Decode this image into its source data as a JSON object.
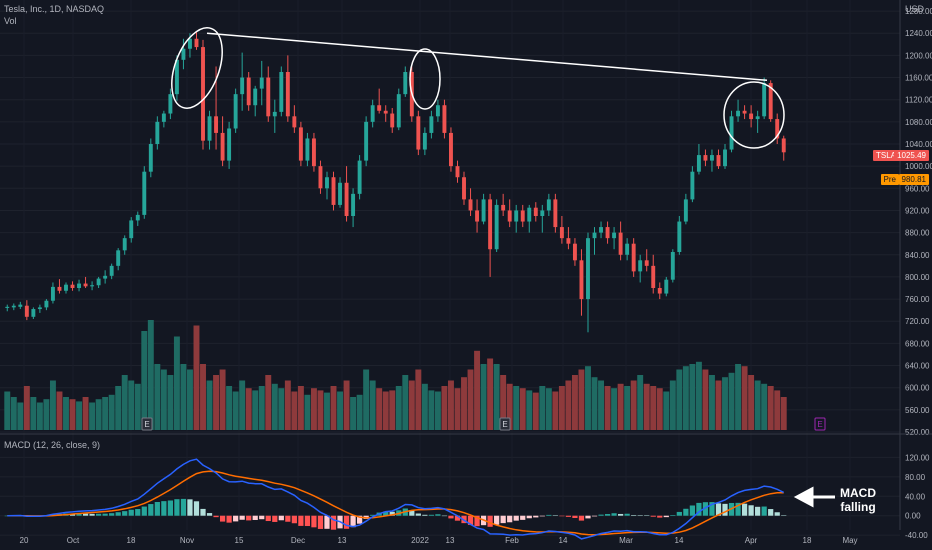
{
  "header": {
    "symbol_line": "Tesla, Inc., 1D, NASDAQ",
    "volume_label": "Vol",
    "currency": "USD",
    "macd_label": "MACD (12, 26, close, 9)"
  },
  "price_tags": {
    "symbol": "TSLA",
    "last": "1025.49",
    "pre_label": "Pre",
    "pre_value": "980.81"
  },
  "annotation": {
    "line1": "MACD",
    "line2": "falling"
  },
  "earnings_marker": "E",
  "colors": {
    "background": "#131722",
    "up": "#26a69a",
    "down": "#ef5350",
    "macd_line": "#2962ff",
    "signal_line": "#ff6d00",
    "hist_up_strong": "#26a69a",
    "hist_up_weak": "#b2dfdb",
    "hist_down_strong": "#ff5252",
    "hist_down_weak": "#ffcdd2",
    "pre_tag": "#ff9800",
    "earnings": "#9c27b0"
  },
  "chart_data": {
    "type": "candlestick",
    "price_axis_ticks": [
      "1280.00",
      "1240.00",
      "1200.00",
      "1160.00",
      "1120.00",
      "1080.00",
      "1040.00",
      "1000.00",
      "960.00",
      "920.00",
      "880.00",
      "840.00",
      "800.00",
      "760.00",
      "720.00",
      "680.00",
      "640.00",
      "600.00",
      "560.00",
      "520.00"
    ],
    "macd_axis_ticks": [
      "120.00",
      "80.00",
      "40.00",
      "0.00",
      "-40.00"
    ],
    "x_tick_labels": [
      "20",
      "Oct",
      "18",
      "Nov",
      "15",
      "Dec",
      "13",
      "2022",
      "13",
      "Feb",
      "14",
      "Mar",
      "14",
      "Apr",
      "18",
      "May"
    ],
    "price_range": [
      520,
      1300
    ],
    "macd_range": [
      -50,
      125
    ],
    "ohlc": [
      [
        744,
        750,
        738,
        746
      ],
      [
        745,
        752,
        740,
        748
      ],
      [
        746,
        755,
        742,
        750
      ],
      [
        748,
        758,
        722,
        728
      ],
      [
        728,
        745,
        724,
        742
      ],
      [
        742,
        750,
        735,
        745
      ],
      [
        745,
        760,
        740,
        757
      ],
      [
        757,
        790,
        752,
        782
      ],
      [
        782,
        796,
        770,
        775
      ],
      [
        775,
        790,
        770,
        786
      ],
      [
        786,
        792,
        775,
        780
      ],
      [
        780,
        795,
        774,
        788
      ],
      [
        788,
        800,
        780,
        783
      ],
      [
        783,
        792,
        776,
        785
      ],
      [
        785,
        800,
        780,
        797
      ],
      [
        797,
        812,
        788,
        802
      ],
      [
        802,
        824,
        796,
        820
      ],
      [
        820,
        852,
        812,
        848
      ],
      [
        848,
        875,
        840,
        870
      ],
      [
        870,
        908,
        862,
        902
      ],
      [
        902,
        918,
        892,
        912
      ],
      [
        912,
        1000,
        905,
        990
      ],
      [
        990,
        1050,
        980,
        1040
      ],
      [
        1040,
        1090,
        1030,
        1080
      ],
      [
        1080,
        1100,
        1070,
        1095
      ],
      [
        1095,
        1140,
        1085,
        1130
      ],
      [
        1130,
        1200,
        1118,
        1192
      ],
      [
        1192,
        1230,
        1175,
        1212
      ],
      [
        1212,
        1240,
        1196,
        1230
      ],
      [
        1230,
        1244,
        1210,
        1215
      ],
      [
        1215,
        1228,
        1030,
        1046
      ],
      [
        1046,
        1100,
        1030,
        1090
      ],
      [
        1090,
        1180,
        1030,
        1060
      ],
      [
        1060,
        1090,
        1000,
        1010
      ],
      [
        1010,
        1080,
        995,
        1068
      ],
      [
        1068,
        1140,
        1060,
        1130
      ],
      [
        1130,
        1205,
        1100,
        1160
      ],
      [
        1160,
        1170,
        1100,
        1110
      ],
      [
        1110,
        1145,
        1090,
        1140
      ],
      [
        1140,
        1190,
        1110,
        1160
      ],
      [
        1160,
        1180,
        1080,
        1090
      ],
      [
        1090,
        1120,
        1060,
        1098
      ],
      [
        1098,
        1180,
        1090,
        1170
      ],
      [
        1170,
        1200,
        1080,
        1090
      ],
      [
        1090,
        1110,
        1060,
        1070
      ],
      [
        1070,
        1080,
        1000,
        1010
      ],
      [
        1010,
        1060,
        1000,
        1050
      ],
      [
        1050,
        1060,
        990,
        1000
      ],
      [
        1000,
        1010,
        950,
        960
      ],
      [
        960,
        990,
        940,
        980
      ],
      [
        980,
        990,
        920,
        930
      ],
      [
        930,
        980,
        925,
        970
      ],
      [
        970,
        1000,
        900,
        910
      ],
      [
        910,
        960,
        890,
        950
      ],
      [
        950,
        1020,
        940,
        1010
      ],
      [
        1010,
        1090,
        1000,
        1080
      ],
      [
        1080,
        1120,
        1070,
        1110
      ],
      [
        1110,
        1140,
        1095,
        1100
      ],
      [
        1100,
        1110,
        1080,
        1095
      ],
      [
        1095,
        1105,
        1060,
        1070
      ],
      [
        1070,
        1140,
        1065,
        1130
      ],
      [
        1130,
        1180,
        1125,
        1170
      ],
      [
        1170,
        1180,
        1080,
        1090
      ],
      [
        1090,
        1100,
        1020,
        1030
      ],
      [
        1030,
        1070,
        1020,
        1060
      ],
      [
        1060,
        1100,
        1050,
        1090
      ],
      [
        1090,
        1120,
        1080,
        1110
      ],
      [
        1110,
        1120,
        1050,
        1060
      ],
      [
        1060,
        1070,
        990,
        1000
      ],
      [
        1000,
        1010,
        970,
        980
      ],
      [
        980,
        990,
        930,
        940
      ],
      [
        940,
        960,
        910,
        920
      ],
      [
        920,
        940,
        880,
        900
      ],
      [
        900,
        950,
        895,
        940
      ],
      [
        940,
        950,
        800,
        850
      ],
      [
        850,
        940,
        845,
        930
      ],
      [
        930,
        950,
        910,
        920
      ],
      [
        920,
        940,
        890,
        900
      ],
      [
        900,
        930,
        880,
        920
      ],
      [
        920,
        930,
        890,
        900
      ],
      [
        900,
        930,
        880,
        925
      ],
      [
        925,
        935,
        900,
        910
      ],
      [
        910,
        930,
        880,
        920
      ],
      [
        920,
        950,
        910,
        940
      ],
      [
        940,
        950,
        880,
        890
      ],
      [
        890,
        910,
        860,
        870
      ],
      [
        870,
        890,
        850,
        860
      ],
      [
        860,
        870,
        820,
        830
      ],
      [
        830,
        850,
        730,
        760
      ],
      [
        760,
        880,
        700,
        870
      ],
      [
        870,
        890,
        840,
        880
      ],
      [
        880,
        900,
        870,
        890
      ],
      [
        890,
        900,
        860,
        870
      ],
      [
        870,
        890,
        850,
        880
      ],
      [
        880,
        900,
        830,
        840
      ],
      [
        840,
        870,
        830,
        860
      ],
      [
        860,
        870,
        800,
        810
      ],
      [
        810,
        840,
        790,
        830
      ],
      [
        830,
        850,
        810,
        820
      ],
      [
        820,
        840,
        770,
        780
      ],
      [
        780,
        790,
        760,
        770
      ],
      [
        770,
        800,
        765,
        795
      ],
      [
        795,
        850,
        790,
        845
      ],
      [
        845,
        910,
        840,
        900
      ],
      [
        900,
        950,
        895,
        940
      ],
      [
        940,
        1000,
        935,
        990
      ],
      [
        990,
        1040,
        985,
        1020
      ],
      [
        1020,
        1030,
        1000,
        1010
      ],
      [
        1010,
        1030,
        990,
        1020
      ],
      [
        1020,
        1030,
        995,
        1000
      ],
      [
        1000,
        1040,
        995,
        1030
      ],
      [
        1030,
        1100,
        1025,
        1090
      ],
      [
        1090,
        1120,
        1080,
        1100
      ],
      [
        1100,
        1110,
        1085,
        1095
      ],
      [
        1095,
        1110,
        1070,
        1085
      ],
      [
        1085,
        1100,
        1060,
        1090
      ],
      [
        1090,
        1160,
        1085,
        1150
      ],
      [
        1150,
        1155,
        1080,
        1085
      ],
      [
        1085,
        1095,
        1040,
        1050
      ],
      [
        1050,
        1055,
        1010,
        1025
      ]
    ],
    "volume_relative": [
      0.35,
      0.3,
      0.25,
      0.4,
      0.3,
      0.25,
      0.28,
      0.45,
      0.35,
      0.3,
      0.28,
      0.26,
      0.3,
      0.25,
      0.28,
      0.3,
      0.32,
      0.4,
      0.5,
      0.45,
      0.42,
      0.9,
      1.0,
      0.6,
      0.55,
      0.5,
      0.85,
      0.6,
      0.55,
      0.95,
      0.6,
      0.45,
      0.5,
      0.55,
      0.4,
      0.35,
      0.45,
      0.38,
      0.36,
      0.4,
      0.5,
      0.42,
      0.38,
      0.45,
      0.35,
      0.4,
      0.32,
      0.38,
      0.36,
      0.34,
      0.4,
      0.35,
      0.45,
      0.3,
      0.32,
      0.55,
      0.45,
      0.38,
      0.35,
      0.36,
      0.4,
      0.5,
      0.45,
      0.55,
      0.42,
      0.36,
      0.35,
      0.4,
      0.45,
      0.38,
      0.48,
      0.55,
      0.72,
      0.6,
      0.65,
      0.6,
      0.5,
      0.42,
      0.4,
      0.38,
      0.36,
      0.34,
      0.4,
      0.38,
      0.35,
      0.4,
      0.45,
      0.5,
      0.55,
      0.58,
      0.48,
      0.45,
      0.4,
      0.38,
      0.42,
      0.4,
      0.45,
      0.5,
      0.42,
      0.4,
      0.38,
      0.35,
      0.45,
      0.55,
      0.58,
      0.6,
      0.62,
      0.55,
      0.5,
      0.45,
      0.48,
      0.52,
      0.6,
      0.58,
      0.5,
      0.45,
      0.42,
      0.4,
      0.36,
      0.3
    ],
    "resistance_line": {
      "from": 1240,
      "to": 1155
    },
    "highlighted_peaks": 3,
    "grid": true
  }
}
